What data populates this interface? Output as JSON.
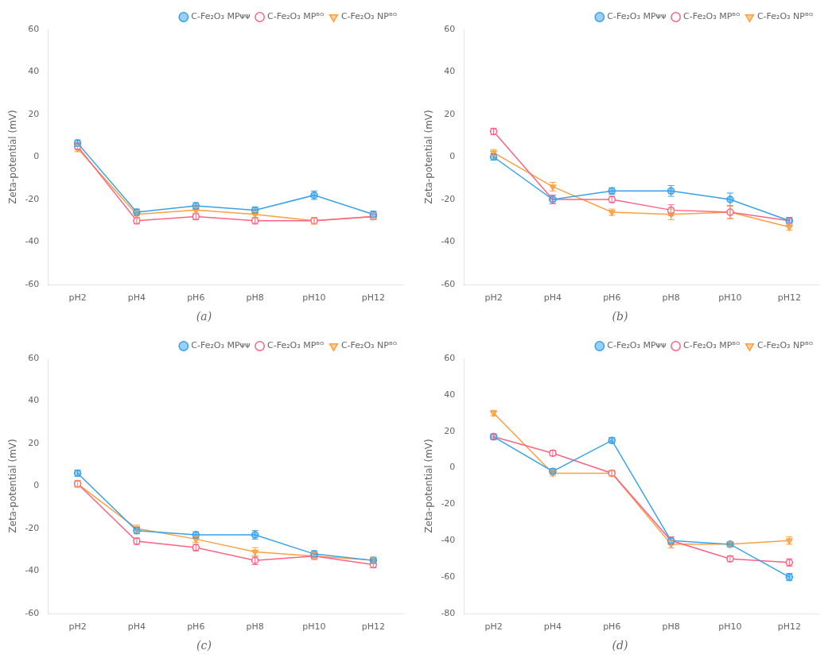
{
  "chart_data": [
    {
      "type": "line",
      "title": "(a)",
      "y_label": "Zeta-potential (mV)",
      "categories": [
        "pH2",
        "pH4",
        "pH6",
        "pH8",
        "pH10",
        "pH12"
      ],
      "ylim": [
        -60,
        60
      ],
      "yticks": [
        -60,
        -40,
        -20,
        0,
        20,
        40,
        60
      ],
      "grid": false,
      "legend": "upper right",
      "series": [
        {
          "name": "C-Fe₂O₃ MPᴪᴪ",
          "values": [
            6.5,
            -26,
            -23,
            -25,
            -18,
            -27
          ],
          "errors": [
            1.5,
            1.5,
            1.5,
            1.5,
            2.0,
            1.5
          ],
          "marker": "circle"
        },
        {
          "name": "C-Fe₂O₃ MPᴮᴳ",
          "values": [
            5.0,
            -30,
            -28,
            -30,
            -30,
            -28
          ],
          "errors": [
            1.5,
            1.5,
            1.5,
            1.5,
            1.5,
            1.5
          ],
          "marker": "open-circle"
        },
        {
          "name": "C-Fe₂O₃ NPᴮᴳ",
          "values": [
            4.0,
            -27,
            -25,
            -27,
            -30,
            -28
          ],
          "errors": [
            1.5,
            1.5,
            1.5,
            1.5,
            1.5,
            1.5
          ],
          "marker": "triangle-down"
        }
      ]
    },
    {
      "type": "line",
      "title": "(b)",
      "y_label": "Zeta-potential (mV)",
      "categories": [
        "pH2",
        "pH4",
        "pH6",
        "pH8",
        "pH10",
        "pH12"
      ],
      "ylim": [
        -60,
        60
      ],
      "yticks": [
        -60,
        -40,
        -20,
        0,
        20,
        40,
        60
      ],
      "grid": false,
      "legend": "upper right",
      "series": [
        {
          "name": "C-Fe₂O₃ MPᴪᴪ",
          "values": [
            0,
            -20,
            -16,
            -16,
            -20,
            -30
          ],
          "errors": [
            1.5,
            2.0,
            1.5,
            2.5,
            3.0,
            1.5
          ],
          "marker": "circle"
        },
        {
          "name": "C-Fe₂O₃ MPᴮᴳ",
          "values": [
            12,
            -20,
            -20,
            -25,
            -26,
            -30
          ],
          "errors": [
            1.5,
            2.0,
            1.5,
            2.5,
            3.0,
            1.5
          ],
          "marker": "open-circle"
        },
        {
          "name": "C-Fe₂O₃ NPᴮᴳ",
          "values": [
            2,
            -14,
            -26,
            -27,
            -26,
            -33
          ],
          "errors": [
            1.5,
            2.0,
            1.5,
            2.5,
            3.0,
            1.5
          ],
          "marker": "triangle-down"
        }
      ]
    },
    {
      "type": "line",
      "title": "(c)",
      "y_label": "Zeta-potential (mV)",
      "categories": [
        "pH2",
        "pH4",
        "pH6",
        "pH8",
        "pH10",
        "pH12"
      ],
      "ylim": [
        -60,
        60
      ],
      "yticks": [
        -60,
        -40,
        -20,
        0,
        20,
        40,
        60
      ],
      "grid": false,
      "legend": "upper right",
      "series": [
        {
          "name": "C-Fe₂O₃ MPᴪᴪ",
          "values": [
            6,
            -21,
            -23,
            -23,
            -32,
            -35
          ],
          "errors": [
            1.5,
            1.5,
            1.5,
            2.0,
            1.5,
            1.5
          ],
          "marker": "circle"
        },
        {
          "name": "C-Fe₂O₃ MPᴮᴳ",
          "values": [
            1,
            -26,
            -29,
            -35,
            -33,
            -37
          ],
          "errors": [
            1.5,
            1.5,
            1.5,
            2.0,
            1.5,
            1.5
          ],
          "marker": "open-circle"
        },
        {
          "name": "C-Fe₂O₃ NPᴮᴳ",
          "values": [
            1,
            -20,
            -25,
            -31,
            -33,
            -35
          ],
          "errors": [
            1.5,
            1.5,
            1.5,
            2.0,
            1.5,
            1.5
          ],
          "marker": "triangle-down"
        }
      ]
    },
    {
      "type": "line",
      "title": "(d)",
      "y_label": "Zeta-potential (mV)",
      "categories": [
        "pH2",
        "pH4",
        "pH6",
        "pH8",
        "pH10",
        "pH12"
      ],
      "ylim": [
        -80,
        60
      ],
      "yticks": [
        -80,
        -60,
        -40,
        -20,
        0,
        20,
        40,
        60
      ],
      "grid": false,
      "legend": "upper right",
      "series": [
        {
          "name": "C-Fe₂O₃ MPᴪᴪ",
          "values": [
            17,
            -2,
            15,
            -40,
            -42,
            -60
          ],
          "errors": [
            1.5,
            1.5,
            1.5,
            2.0,
            1.5,
            2.0
          ],
          "marker": "circle"
        },
        {
          "name": "C-Fe₂O₃ MPᴮᴳ",
          "values": [
            17,
            8,
            -3,
            -40,
            -50,
            -52
          ],
          "errors": [
            1.5,
            1.5,
            1.5,
            2.0,
            1.5,
            2.0
          ],
          "marker": "open-circle"
        },
        {
          "name": "C-Fe₂O₃ NPᴮᴳ",
          "values": [
            30,
            -3,
            -3,
            -42,
            -42,
            -40
          ],
          "errors": [
            1.5,
            1.5,
            1.5,
            2.0,
            1.5,
            2.0
          ],
          "marker": "triangle-down"
        }
      ]
    }
  ]
}
